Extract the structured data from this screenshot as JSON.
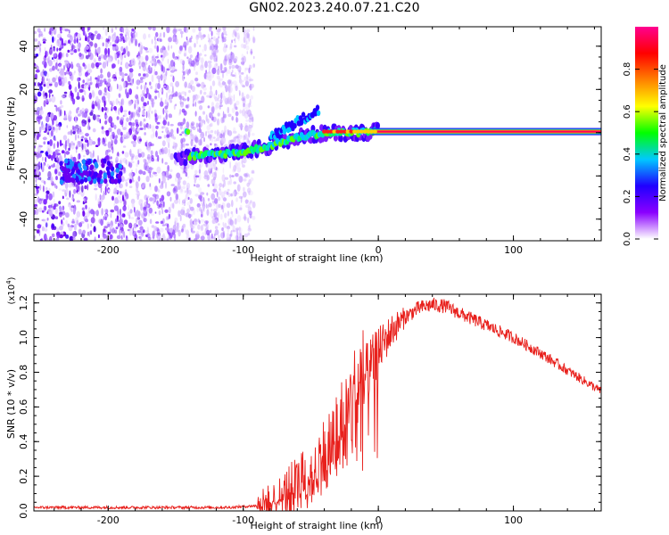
{
  "title": "GN02.2023.240.07.21.C20",
  "chart_data": [
    {
      "type": "heatmap",
      "xlabel": "Height of straight line (km)",
      "ylabel": "Frequency (Hz)",
      "xlim": [
        -255,
        165
      ],
      "ylim": [
        -50,
        49
      ],
      "xticks": [
        -200,
        -100,
        0,
        100
      ],
      "yticks": [
        -40,
        -20,
        0,
        20,
        40
      ],
      "colorbar": {
        "label": "Normalized spectral amplitude",
        "range": [
          0,
          1
        ],
        "ticks": [
          "0.0",
          "0.2",
          "0.4",
          "0.6",
          "0.8"
        ],
        "colormap": [
          "#ffffff",
          "#8a00ff",
          "#2000ff",
          "#00c8ff",
          "#00ff00",
          "#ffff00",
          "#ff8000",
          "#ff0000",
          "#ff0090"
        ]
      },
      "features": {
        "noise_region_x": [
          -255,
          -100
        ],
        "carrier_track": {
          "x": [
            -140,
            -120,
            -100,
            -80,
            -65,
            -50,
            -35,
            -20,
            0,
            165
          ],
          "y": [
            -11,
            -10,
            -9,
            -6,
            -3,
            -1,
            0,
            0,
            0.5,
            0.5
          ]
        }
      }
    },
    {
      "type": "line",
      "xlabel": "Height of straight line (km)",
      "ylabel": "SNR (10 * v/v)",
      "yscale_note": "(x10",
      "yscale_exp": "4",
      "xlim": [
        -255,
        165
      ],
      "ylim": [
        0,
        1.25
      ],
      "xticks": [
        -200,
        -100,
        0,
        100
      ],
      "yticks": [
        "0.0",
        "0.2",
        "0.4",
        "0.6",
        "0.8",
        "1.0",
        "1.2"
      ],
      "color": "#e8201c",
      "series": [
        {
          "x": [
            -255,
            -200,
            -150,
            -110,
            -90,
            -80,
            -70,
            -60,
            -50,
            -40,
            -30,
            -20,
            -10,
            0,
            10,
            20,
            30,
            40,
            50,
            60,
            80,
            100,
            120,
            140,
            165
          ],
          "values": [
            0.02,
            0.02,
            0.02,
            0.02,
            0.03,
            0.05,
            0.09,
            0.15,
            0.22,
            0.32,
            0.45,
            0.62,
            0.78,
            0.92,
            1.04,
            1.12,
            1.17,
            1.19,
            1.18,
            1.14,
            1.07,
            1.0,
            0.91,
            0.81,
            0.69
          ]
        }
      ]
    }
  ]
}
